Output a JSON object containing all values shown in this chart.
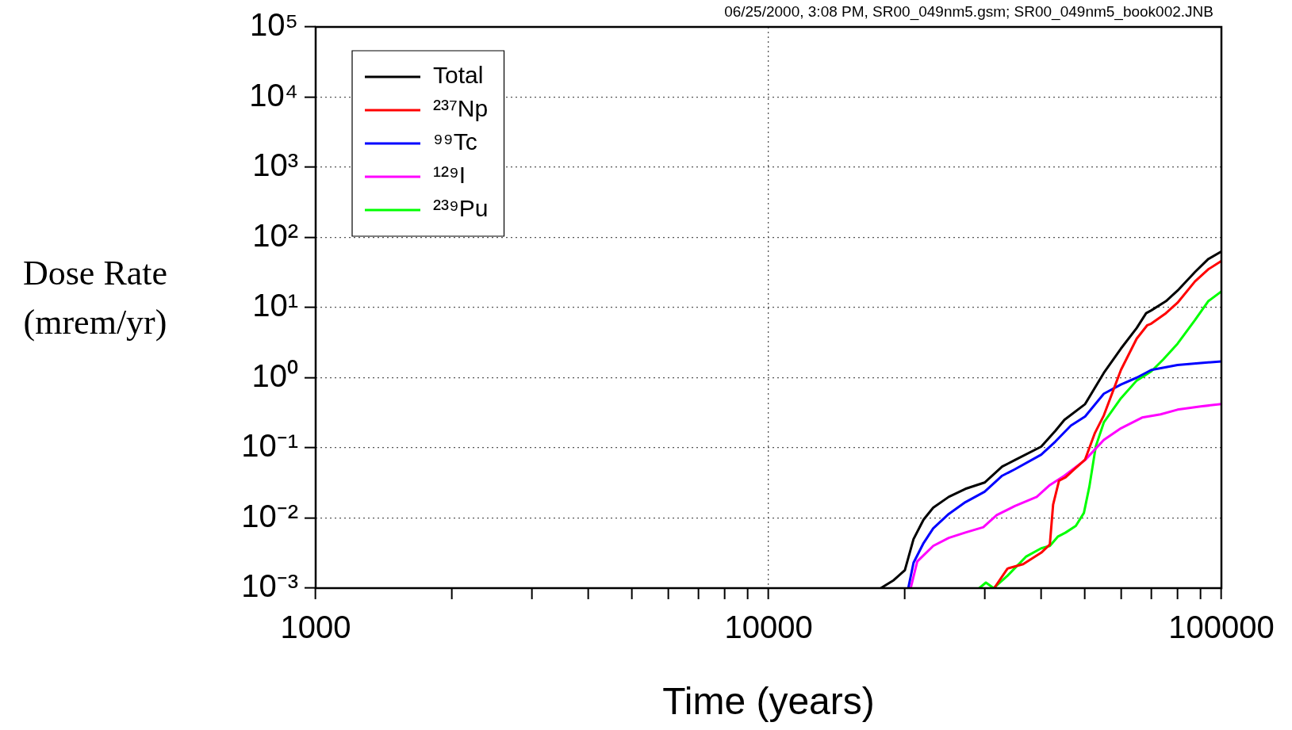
{
  "chart_data": {
    "type": "line",
    "xlabel": "Time (years)",
    "ylabel": "Dose Rate (mrem/yr)",
    "annotations": [
      "06/25/2000, 3:08 PM, SR00_049nm5.gsm; SR00_049nm5_book002.JNB"
    ],
    "log": "xy",
    "grid": true,
    "legend": "top left",
    "marker": "none",
    "line_style": "solid",
    "xlim": [
      1000,
      100000
    ],
    "ylim": [
      0.001,
      100000
    ],
    "xticks": [
      1000,
      {
        "value": 2000,
        "label": null
      },
      {
        "value": 3000,
        "label": null
      },
      {
        "value": 4000,
        "label": null
      },
      {
        "value": 5000,
        "label": null
      },
      {
        "value": 6000,
        "label": null
      },
      {
        "value": 7000,
        "label": null
      },
      {
        "value": 8000,
        "label": null
      },
      {
        "value": 9000,
        "label": null
      },
      10000,
      {
        "value": 20000,
        "label": null
      },
      {
        "value": 30000,
        "label": null
      },
      {
        "value": 40000,
        "label": null
      },
      {
        "value": 50000,
        "label": null
      },
      {
        "value": 60000,
        "label": null
      },
      {
        "value": 70000,
        "label": null
      },
      {
        "value": 80000,
        "label": null
      },
      {
        "value": 90000,
        "label": null
      },
      100000
    ],
    "yticks": [
      {
        "value": 0.001,
        "label": "10⁻³"
      },
      {
        "value": 0.01,
        "label": "10⁻²"
      },
      {
        "value": 0.1,
        "label": "10⁻¹"
      },
      {
        "value": 1,
        "label": "10⁰"
      },
      {
        "value": 10,
        "label": "10¹"
      },
      {
        "value": 100,
        "label": "10²"
      },
      {
        "value": 1000,
        "label": "10³"
      },
      {
        "value": 10000,
        "label": "10⁴"
      },
      {
        "value": 100000,
        "label": "10⁵"
      }
    ],
    "series": [
      {
        "name": "Total",
        "color": "#000000",
        "x": [
          17700,
          18900,
          20000,
          20900,
          22000,
          23100,
          25000,
          27200,
          30000,
          32800,
          35000,
          40000,
          43000,
          45000,
          50000,
          55000,
          60000,
          65000,
          68200,
          70000,
          75400,
          80000,
          87400,
          93500,
          100000
        ],
        "values": [
          0.001,
          0.0013,
          0.0018,
          0.005,
          0.0095,
          0.014,
          0.02,
          0.026,
          0.032,
          0.054,
          0.067,
          0.104,
          0.175,
          0.25,
          0.42,
          1.17,
          2.6,
          5.1,
          8.3,
          9.1,
          12.3,
          17.4,
          32,
          49,
          63
        ]
      },
      {
        "name": "²³⁷Np",
        "color": "#ff0000",
        "x": [
          31500,
          33700,
          36500,
          40000,
          41800,
          42500,
          43800,
          45300,
          47100,
          50000,
          52500,
          55000,
          60000,
          65000,
          68600,
          70000,
          75400,
          80000,
          87400,
          93500,
          100000
        ],
        "values": [
          0.001,
          0.0019,
          0.0022,
          0.0032,
          0.0042,
          0.0155,
          0.034,
          0.038,
          0.048,
          0.068,
          0.16,
          0.29,
          1.29,
          3.6,
          5.6,
          5.9,
          8.3,
          11.7,
          23.5,
          35,
          46
        ]
      },
      {
        "name": "⁹⁹Tc",
        "color": "#0000ff",
        "x": [
          20350,
          20900,
          22000,
          23100,
          25000,
          27200,
          30000,
          32800,
          35000,
          40000,
          43000,
          46500,
          50000,
          55000,
          60000,
          65000,
          70000,
          80000,
          90000,
          100000
        ],
        "values": [
          0.001,
          0.0023,
          0.0044,
          0.0071,
          0.0114,
          0.0168,
          0.0237,
          0.04,
          0.0495,
          0.08,
          0.123,
          0.207,
          0.28,
          0.59,
          0.8,
          1.0,
          1.29,
          1.52,
          1.62,
          1.7
        ]
      },
      {
        "name": "¹²⁹I",
        "color": "#ff00ff",
        "x": [
          20600,
          21300,
          23100,
          25000,
          27200,
          29800,
          31900,
          35000,
          39100,
          41800,
          45000,
          50000,
          55000,
          60000,
          66800,
          73400,
          80000,
          90000,
          100000
        ],
        "values": [
          0.001,
          0.0024,
          0.004,
          0.0052,
          0.0062,
          0.0074,
          0.011,
          0.0148,
          0.02,
          0.0295,
          0.04,
          0.067,
          0.13,
          0.19,
          0.27,
          0.3,
          0.35,
          0.39,
          0.42
        ]
      },
      {
        "name": "²³⁹Pu",
        "color": "#00ff00",
        "x": [
          29200,
          30200,
          31400,
          33700,
          37000,
          40000,
          41800,
          43500,
          45300,
          47700,
          49700,
          51100,
          52800,
          55000,
          60000,
          65000,
          70000,
          74400,
          80000,
          87400,
          93500,
          100000
        ],
        "values": [
          0.001,
          0.0012,
          0.001,
          0.0015,
          0.0028,
          0.0037,
          0.004,
          0.0054,
          0.0062,
          0.0077,
          0.0118,
          0.028,
          0.105,
          0.23,
          0.51,
          0.91,
          1.23,
          1.82,
          3.05,
          6.6,
          12.3,
          17
        ]
      }
    ]
  }
}
